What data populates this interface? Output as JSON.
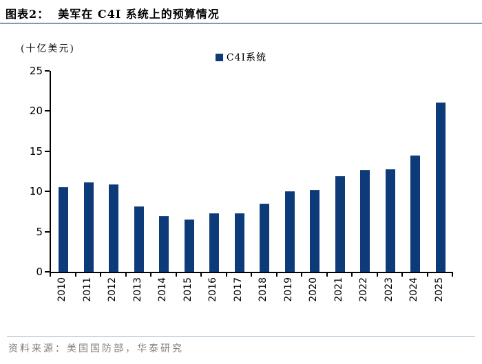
{
  "header": {
    "title": "图表2：  美军在 C4I 系统上的预算情况"
  },
  "colors": {
    "bar": "#0d3b7a",
    "bar_edge": "#2a4f87",
    "title_rule": "#7d99bc",
    "footer_rule": "#9fb4cd",
    "axis": "#000000",
    "footer_text": "#7f7f7f"
  },
  "chart_data": {
    "type": "bar",
    "title": "美军在 C4I 系统上的预算情况",
    "unit_label": "(十亿美元)",
    "legend": [
      {
        "label": "C4I系统",
        "color": "#0d3b7a"
      }
    ],
    "legend_position": "top-center",
    "categories": [
      "2010",
      "2011",
      "2012",
      "2013",
      "2014",
      "2015",
      "2016",
      "2017",
      "2018",
      "2019",
      "2020",
      "2021",
      "2022",
      "2023",
      "2024",
      "2025"
    ],
    "series": [
      {
        "name": "C4I系统",
        "values": [
          10.5,
          11.1,
          10.9,
          8.1,
          6.9,
          6.5,
          7.3,
          7.3,
          8.5,
          10.0,
          10.2,
          11.9,
          12.7,
          12.8,
          14.5,
          21.1
        ]
      }
    ],
    "xlabel": "",
    "ylabel": "(十亿美元)",
    "ylim": [
      0,
      25
    ],
    "yticks": [
      0,
      5,
      10,
      15,
      20,
      25
    ],
    "grid": false
  },
  "footer": {
    "source": "资料来源：美国国防部，华泰研究"
  }
}
